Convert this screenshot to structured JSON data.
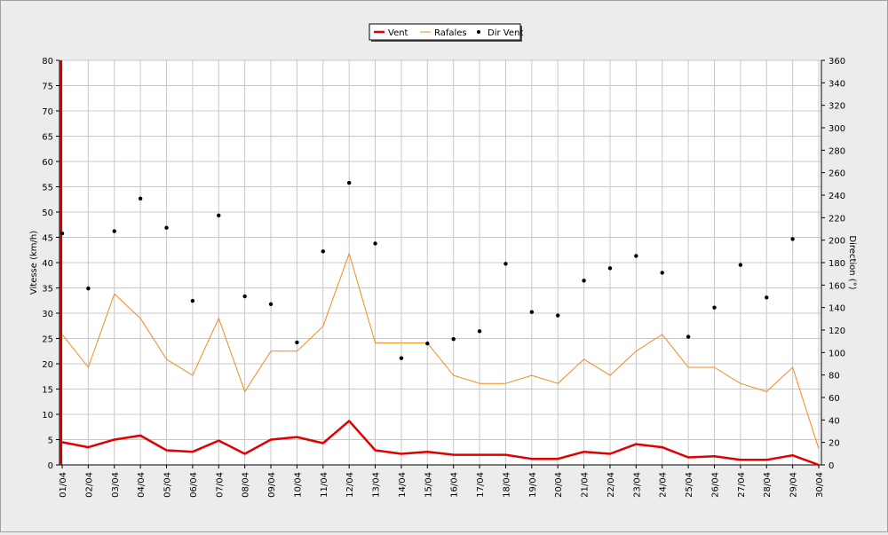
{
  "chart_data": {
    "type": "line",
    "title": "",
    "ylabel": "Vitesse (km/h)",
    "y2label": "Direction (°)",
    "ylim": [
      0,
      80
    ],
    "y2lim": [
      0,
      360
    ],
    "yticks": [
      "0",
      "5",
      "10",
      "15",
      "20",
      "25",
      "30",
      "35",
      "40",
      "45",
      "50",
      "55",
      "60",
      "65",
      "70",
      "75",
      "80"
    ],
    "y2ticks": [
      "0",
      "20",
      "40",
      "60",
      "80",
      "100",
      "120",
      "140",
      "160",
      "180",
      "200",
      "220",
      "240",
      "260",
      "280",
      "300",
      "320",
      "340",
      "360"
    ],
    "categories": [
      "01/04",
      "02/04",
      "03/04",
      "04/04",
      "05/04",
      "06/04",
      "07/04",
      "08/04",
      "09/04",
      "10/04",
      "11/04",
      "12/04",
      "13/04",
      "14/04",
      "15/04",
      "16/04",
      "17/04",
      "18/04",
      "19/04",
      "20/04",
      "21/04",
      "22/04",
      "23/04",
      "24/04",
      "25/04",
      "26/04",
      "27/04",
      "28/04",
      "29/04",
      "30/04"
    ],
    "grid": true,
    "legend_position": "top-center",
    "series": [
      {
        "name": "Vent",
        "type": "line",
        "axis": "left",
        "color": "#e00000",
        "values": [
          4.5,
          3.5,
          5.0,
          5.8,
          2.9,
          2.6,
          4.8,
          2.2,
          5.0,
          5.5,
          4.3,
          8.7,
          2.9,
          2.2,
          2.6,
          2.0,
          2.0,
          2.0,
          1.2,
          1.2,
          2.6,
          2.2,
          4.1,
          3.5,
          1.5,
          1.7,
          1.0,
          1.0,
          1.9,
          0.0
        ]
      },
      {
        "name": "Rafales",
        "type": "line",
        "axis": "left",
        "color": "#f08c1e",
        "values": [
          25.8,
          19.3,
          33.8,
          29.0,
          20.9,
          17.7,
          29.0,
          14.5,
          22.5,
          22.5,
          27.4,
          41.8,
          24.1,
          24.1,
          24.1,
          17.7,
          16.1,
          16.1,
          17.7,
          16.1,
          20.9,
          17.7,
          22.5,
          25.8,
          19.3,
          19.3,
          16.1,
          14.5,
          19.3,
          3.2
        ]
      },
      {
        "name": "Dir Vent",
        "type": "scatter",
        "axis": "right",
        "color": "#000000",
        "values": [
          206,
          157,
          208,
          237,
          211,
          146,
          222,
          150,
          143,
          109,
          190,
          251,
          197,
          95,
          108,
          112,
          119,
          179,
          136,
          133,
          164,
          175,
          186,
          171,
          114,
          140,
          178,
          149,
          201,
          null
        ]
      }
    ]
  }
}
